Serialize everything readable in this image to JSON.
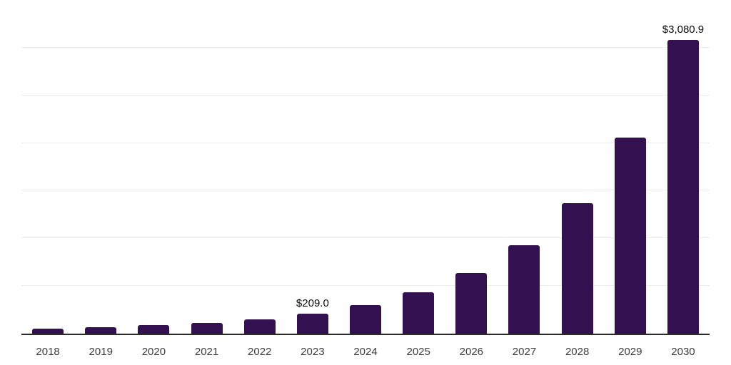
{
  "chart_data": {
    "type": "bar",
    "title": "",
    "xlabel": "",
    "ylabel": "",
    "categories": [
      "2018",
      "2019",
      "2020",
      "2021",
      "2022",
      "2023",
      "2024",
      "2025",
      "2026",
      "2027",
      "2028",
      "2029",
      "2030"
    ],
    "values": [
      52,
      67,
      89,
      112,
      149,
      209.0,
      298,
      432,
      633,
      931,
      1371,
      2060,
      3080.9
    ],
    "labeled_points": [
      {
        "category": "2023",
        "label": "$209.0"
      },
      {
        "category": "2030",
        "label": "$3,080.9"
      }
    ],
    "ylim": [
      0,
      3500
    ],
    "gridline_step": 500,
    "grid": "horizontal-only",
    "legend": "none",
    "value_prefix": "$"
  },
  "colors": {
    "background": "#ffffff",
    "bar": "#331150",
    "axis_line": "#2a2a2a",
    "gridline": "#ededed",
    "tick_label": "#3d3d3d",
    "value_label": "#0a0a0a"
  }
}
